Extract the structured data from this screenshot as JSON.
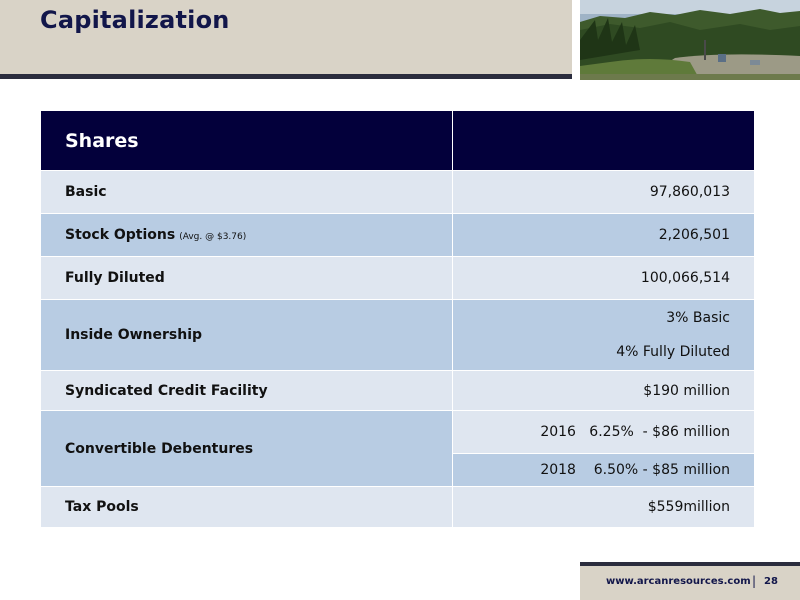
{
  "slide": {
    "title": "Capitalization",
    "footer_url": "www.arcanresources.com",
    "footer_separator": "|",
    "page_number": "28"
  },
  "table": {
    "header": "Shares",
    "rows": {
      "basic": {
        "label": "Basic",
        "value": "97,860,013"
      },
      "stock_options": {
        "label": "Stock Options",
        "note": "(Avg. @ $3.76)",
        "value": "2,206,501"
      },
      "fully_diluted": {
        "label": "Fully Diluted",
        "value": "100,066,514"
      },
      "inside_ownership": {
        "label": "Inside Ownership",
        "value_1": "3% Basic",
        "value_2": "4% Fully Diluted"
      },
      "credit_facility": {
        "label": "Syndicated Credit Facility",
        "value": "$190 million"
      },
      "convertible_debentures": {
        "label": "Convertible Debentures",
        "value_1": "2016   6.25%  - $86 million",
        "value_2": "2018    6.50% - $85 million"
      },
      "tax_pools": {
        "label": "Tax Pools",
        "value": "$559million"
      }
    }
  },
  "colors": {
    "header_bg": "#03003b",
    "row_light": "#dfe6f0",
    "row_dark": "#b8cce3",
    "band": "#d9d3c7",
    "title_text": "#12164a"
  },
  "images": {
    "header_photo": "forest-well-site-photo"
  }
}
